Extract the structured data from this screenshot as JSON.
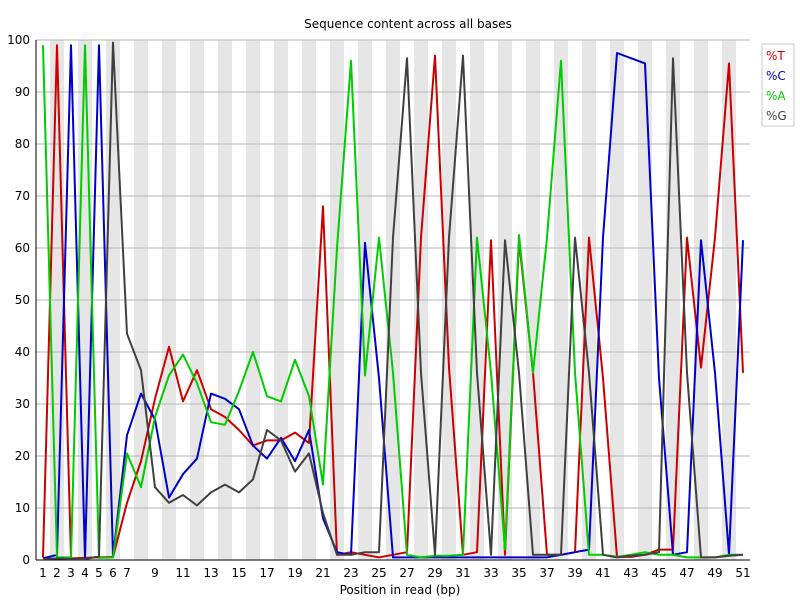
{
  "chart_data": {
    "type": "line",
    "title": "Sequence content across all bases",
    "xlabel": "Position in read (bp)",
    "ylabel": "",
    "x": [
      1,
      2,
      3,
      4,
      5,
      6,
      7,
      8,
      9,
      10,
      11,
      12,
      13,
      14,
      15,
      16,
      17,
      18,
      19,
      20,
      21,
      22,
      23,
      24,
      25,
      26,
      27,
      28,
      29,
      30,
      31,
      32,
      33,
      34,
      35,
      36,
      37,
      38,
      39,
      40,
      41,
      42,
      43,
      44,
      45,
      46,
      47,
      48,
      49,
      50,
      51
    ],
    "x_tick_labels": [
      "1",
      "2",
      "3",
      "4",
      "5",
      "6",
      "7",
      "9",
      "11",
      "13",
      "15",
      "17",
      "19",
      "21",
      "23",
      "25",
      "27",
      "29",
      "31",
      "33",
      "35",
      "37",
      "39",
      "41",
      "43",
      "45",
      "47",
      "49",
      "51"
    ],
    "xlim": [
      1,
      51
    ],
    "ylim": [
      0,
      100
    ],
    "y_ticks": [
      0,
      10,
      20,
      30,
      40,
      50,
      60,
      70,
      80,
      90,
      100
    ],
    "grid": true,
    "legend_position": "top-right",
    "series": [
      {
        "name": "%T",
        "color": "#cc0000",
        "values": [
          0.5,
          99,
          0.3,
          0.4,
          0.5,
          0.6,
          11,
          19,
          31,
          41,
          30.5,
          36.5,
          29,
          27.5,
          25,
          22,
          23,
          23,
          24.5,
          22.5,
          68,
          1,
          1.5,
          1,
          0.5,
          1,
          1.5,
          62,
          97,
          37,
          1,
          1.5,
          61.5,
          1,
          61.5,
          36,
          1,
          1,
          1.5,
          62,
          35,
          0.6,
          0.6,
          1,
          2,
          2,
          62,
          37,
          62,
          95.5,
          36
        ]
      },
      {
        "name": "%C",
        "color": "#0000cc",
        "values": [
          0.3,
          1,
          99,
          0.4,
          99,
          0.6,
          24,
          32,
          27,
          12,
          16.5,
          19.5,
          32,
          31,
          29,
          22,
          19.5,
          23.5,
          19,
          25,
          8,
          1.5,
          1,
          61,
          35,
          0.5,
          0.5,
          0.5,
          0.5,
          0.5,
          0.5,
          0.5,
          0.5,
          0.5,
          0.5,
          0.5,
          0.5,
          1,
          1.5,
          2,
          62,
          97.5,
          96.5,
          95.5,
          35,
          1,
          1.5,
          61.5,
          36,
          1,
          61.5
        ]
      },
      {
        "name": "%A",
        "color": "#00cc00",
        "values": [
          99,
          0.5,
          0.5,
          99,
          0.4,
          0.5,
          20.5,
          14,
          27.5,
          35.5,
          39.5,
          34,
          26.5,
          26,
          32.5,
          40,
          31.5,
          30.5,
          38.5,
          31.5,
          14.5,
          60,
          96,
          35.5,
          62,
          36,
          1,
          0.5,
          0.8,
          0.8,
          1,
          62,
          36,
          2,
          62.5,
          36,
          62,
          96,
          36,
          1,
          1,
          0.6,
          1,
          1.5,
          1,
          1,
          0.5,
          0.5,
          0.5,
          1,
          1
        ]
      },
      {
        "name": "%G",
        "color": "#404040",
        "values": [
          0.2,
          0.3,
          0.2,
          0.2,
          0.7,
          99.5,
          43.5,
          36.5,
          14,
          11,
          12.5,
          10.5,
          13,
          14.5,
          13,
          15.5,
          25,
          23,
          17,
          20.5,
          9,
          1,
          1,
          1.5,
          1.5,
          62,
          96.5,
          36,
          1,
          62,
          97,
          36,
          1,
          61.5,
          36,
          1,
          1,
          1,
          62,
          36,
          1,
          0.5,
          0.8,
          1,
          1.5,
          96.5,
          36,
          0.5,
          0.5,
          0.8,
          1
        ]
      }
    ]
  }
}
